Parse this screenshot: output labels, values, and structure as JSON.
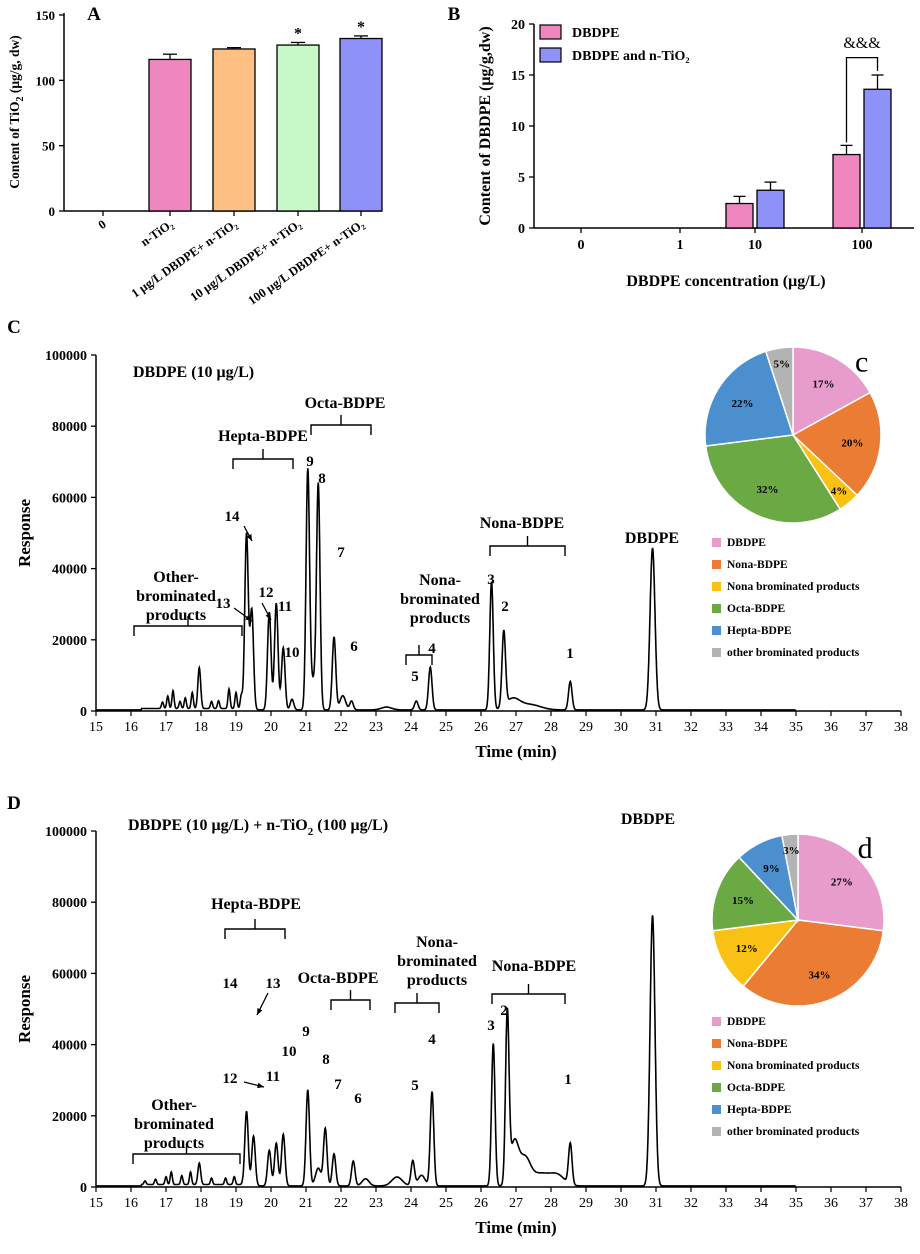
{
  "chart_data": [
    {
      "panel": "A",
      "type": "bar",
      "ylabel_main": "Content of TiO",
      "ylabel_sub": "2",
      "ylabel_rest": " (μg/g, dw)",
      "ylim": [
        0,
        150
      ],
      "yticks": [
        0,
        50,
        100,
        150
      ],
      "categories": [
        "0",
        "n-TiO₂",
        "1 μg/L DBDPE+ n-TiO₂",
        "10 μg/L DBDPE+ n-TiO₂",
        "100 μg/L DBDPE+ n-TiO₂"
      ],
      "values": [
        0,
        116,
        124,
        127,
        132
      ],
      "errors": [
        0,
        4,
        1,
        2,
        2
      ],
      "significance": [
        "",
        "",
        "",
        "*",
        "*"
      ],
      "colors": [
        "#ffffff",
        "#ef86c0",
        "#fdbf82",
        "#c8f7c8",
        "#8e92f8"
      ]
    },
    {
      "panel": "B",
      "type": "bar",
      "xlabel": "DBDPE concentration (μg/L)",
      "ylabel": "Content of DBDPE (μg/g,dw)",
      "ylim": [
        0,
        20
      ],
      "yticks": [
        0,
        5,
        10,
        15,
        20
      ],
      "categories": [
        "0",
        "1",
        "10",
        "100"
      ],
      "series": [
        {
          "name": "DBDPE",
          "color": "#ef86c0",
          "values": [
            0,
            0,
            2.4,
            7.2
          ],
          "errors": [
            0,
            0,
            0.7,
            0.9
          ]
        },
        {
          "name": "DBDPE and n-TiO₂",
          "color": "#8e92f8",
          "values": [
            0,
            0,
            3.7,
            13.6
          ],
          "errors": [
            0,
            0,
            0.8,
            1.4
          ]
        }
      ],
      "annotation": "&&&"
    },
    {
      "panel": "C",
      "type": "line",
      "title": "DBDPE (10 μg/L)",
      "xlabel": "Time (min)",
      "ylabel": "Response",
      "xlim": [
        15,
        38
      ],
      "ylim": [
        0,
        100000
      ],
      "yticks": [
        0,
        20000,
        40000,
        60000,
        80000,
        100000
      ],
      "peaks": [
        {
          "label": "14",
          "x": 19.3,
          "y": 49500
        },
        {
          "label": "13",
          "x": 19.45,
          "y": 28000
        },
        {
          "label": "12",
          "x": 19.95,
          "y": 27500
        },
        {
          "label": "11",
          "x": 20.15,
          "y": 30000
        },
        {
          "label": "10",
          "x": 20.35,
          "y": 17500
        },
        {
          "label": "9",
          "x": 21.05,
          "y": 66500
        },
        {
          "label": "8",
          "x": 21.35,
          "y": 62500
        },
        {
          "label": "7",
          "x": 21.8,
          "y": 20500
        },
        {
          "label": "6",
          "x": 22.3,
          "y": 2500
        },
        {
          "label": "5",
          "x": 24.15,
          "y": 2500
        },
        {
          "label": "4",
          "x": 24.55,
          "y": 12000
        },
        {
          "label": "3",
          "x": 26.3,
          "y": 36000
        },
        {
          "label": "2",
          "x": 26.65,
          "y": 21000
        },
        {
          "label": "1",
          "x": 28.55,
          "y": 8000
        },
        {
          "label": "DBDPE",
          "x": 30.9,
          "y": 45500
        }
      ],
      "group_labels": [
        "Hepta-BDPE",
        "Octa-BDPE",
        "Nona-BDPE",
        "Nona-",
        "brominated",
        "products",
        "Other-",
        "brominated",
        "products"
      ],
      "pie": {
        "tag": "c",
        "slices": [
          {
            "name": "DBDPE",
            "value": 17,
            "color": "#e79ccc"
          },
          {
            "name": "Nona-BDPE",
            "value": 20,
            "color": "#ea7d33"
          },
          {
            "name": "Nona brominated products",
            "value": 4,
            "color": "#f8c114"
          },
          {
            "name": "Octa-BDPE",
            "value": 32,
            "color": "#6aa944"
          },
          {
            "name": "Hepta-BDPE",
            "value": 22,
            "color": "#4b8fcf"
          },
          {
            "name": "other brominated products",
            "value": 5,
            "color": "#b3b3b3"
          }
        ]
      }
    },
    {
      "panel": "D",
      "type": "line",
      "title_main": "DBDPE (10 μg/L) + n-TiO",
      "title_sub": "2",
      "title_rest": " (100 μg/L)",
      "xlabel": "Time (min)",
      "ylabel": "Response",
      "xlim": [
        15,
        38
      ],
      "ylim": [
        0,
        100000
      ],
      "yticks": [
        0,
        20000,
        40000,
        60000,
        80000,
        100000
      ],
      "peaks": [
        {
          "label": "14",
          "x": 19.3,
          "y": 21000
        },
        {
          "label": "13",
          "x": 19.5,
          "y": 14000
        },
        {
          "label": "12",
          "x": 19.95,
          "y": 10000
        },
        {
          "label": "11",
          "x": 20.15,
          "y": 12000
        },
        {
          "label": "10",
          "x": 20.35,
          "y": 14500
        },
        {
          "label": "9",
          "x": 21.05,
          "y": 27000
        },
        {
          "label": "8",
          "x": 21.55,
          "y": 16000
        },
        {
          "label": "7",
          "x": 21.8,
          "y": 9000
        },
        {
          "label": "6",
          "x": 22.35,
          "y": 7000
        },
        {
          "label": "5",
          "x": 24.05,
          "y": 7000
        },
        {
          "label": "4",
          "x": 24.6,
          "y": 26500
        },
        {
          "label": "3",
          "x": 26.35,
          "y": 40000
        },
        {
          "label": "2",
          "x": 26.75,
          "y": 47000
        },
        {
          "label": "1",
          "x": 28.55,
          "y": 11500
        },
        {
          "label": "DBDPE",
          "x": 30.9,
          "y": 76000
        }
      ],
      "group_labels": [
        "Hepta-BDPE",
        "Octa-BDPE",
        "Nona-BDPE",
        "Nona-",
        "brominated",
        "products",
        "Other-",
        "brominated",
        "products"
      ],
      "pie": {
        "tag": "d",
        "slices": [
          {
            "name": "DBDPE",
            "value": 27,
            "color": "#e79ccc"
          },
          {
            "name": "Nona-BDPE",
            "value": 34,
            "color": "#ea7d33"
          },
          {
            "name": "Nona brominated products",
            "value": 12,
            "color": "#f8c114"
          },
          {
            "name": "Octa-BDPE",
            "value": 15,
            "color": "#6aa944"
          },
          {
            "name": "Hepta-BDPE",
            "value": 9,
            "color": "#4b8fcf"
          },
          {
            "name": "other brominated products",
            "value": 3,
            "color": "#b3b3b3"
          }
        ]
      }
    }
  ]
}
